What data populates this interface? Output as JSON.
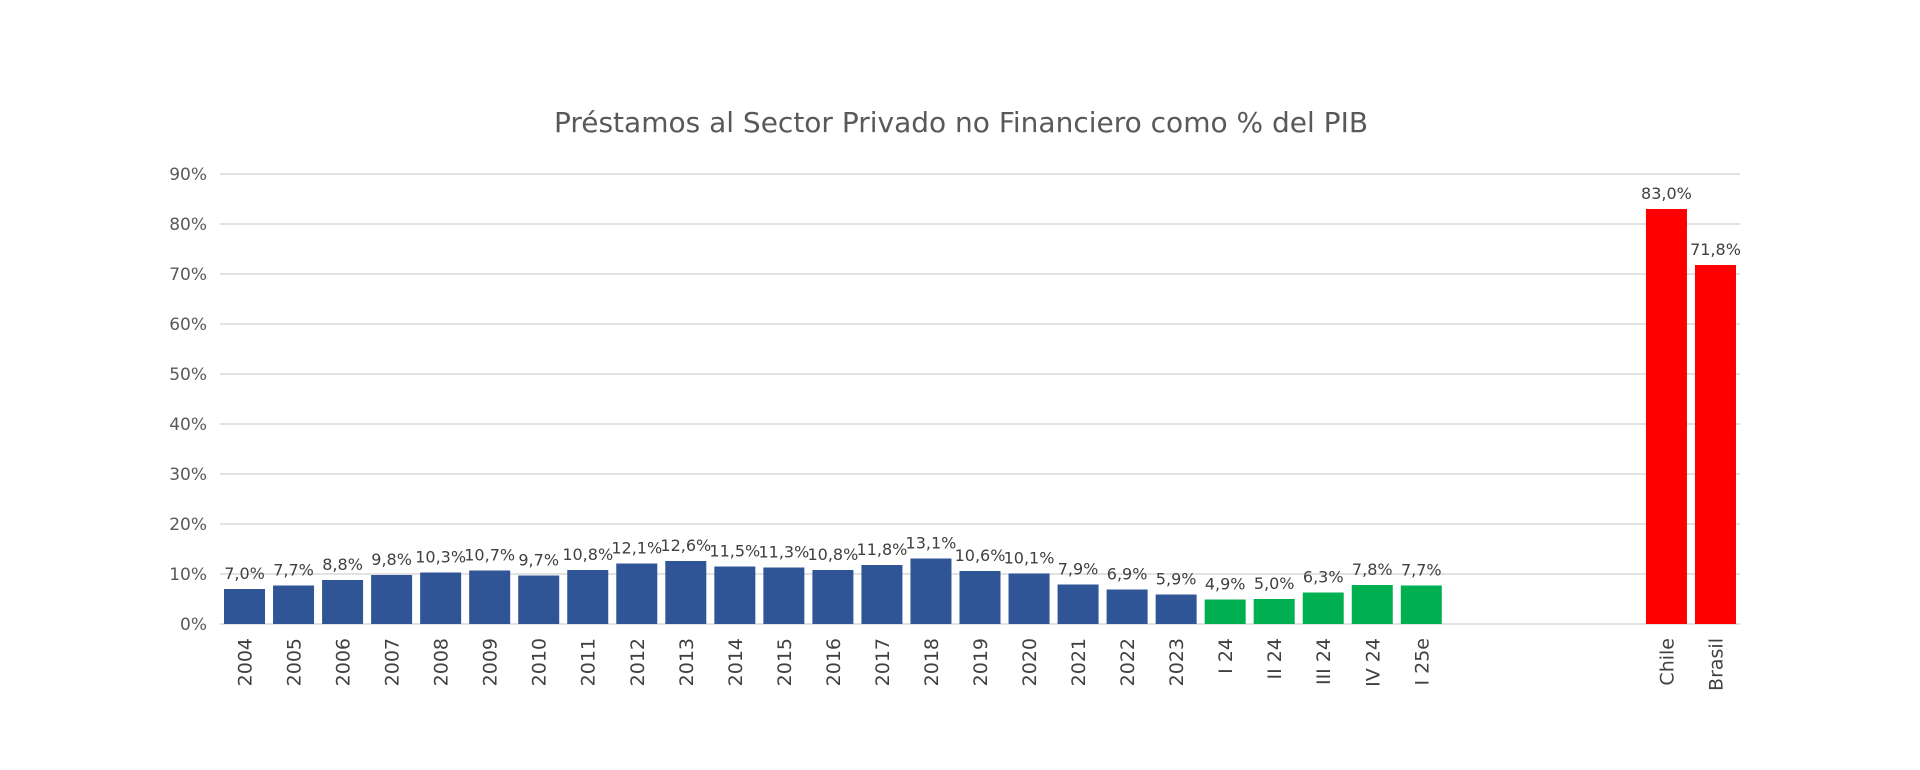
{
  "chart_data": {
    "type": "bar",
    "title": "Préstamos al Sector Privado no Financiero como % del PIB",
    "xlabel": "",
    "ylabel": "",
    "ylim": [
      0,
      90
    ],
    "y_ticks": [
      "0%",
      "10%",
      "20%",
      "30%",
      "40%",
      "50%",
      "60%",
      "70%",
      "80%",
      "90%"
    ],
    "grid": true,
    "legend": "none",
    "categories": [
      "2004",
      "2005",
      "2006",
      "2007",
      "2008",
      "2009",
      "2010",
      "2011",
      "2012",
      "2013",
      "2014",
      "2015",
      "2016",
      "2017",
      "2018",
      "2019",
      "2020",
      "2021",
      "2022",
      "2023",
      "I 24",
      "II 24",
      "III 24",
      "IV 24",
      "I 25e",
      "",
      "",
      "",
      "",
      "Chile",
      "Brasil"
    ],
    "values": [
      7.0,
      7.7,
      8.8,
      9.8,
      10.3,
      10.7,
      9.7,
      10.8,
      12.1,
      12.6,
      11.5,
      11.3,
      10.8,
      11.8,
      13.1,
      10.6,
      10.1,
      7.9,
      6.9,
      5.9,
      4.9,
      5.0,
      6.3,
      7.8,
      7.7,
      null,
      null,
      null,
      null,
      83.0,
      71.8
    ],
    "data_labels": [
      "7,0%",
      "7,7%",
      "8,8%",
      "9,8%",
      "10,3%",
      "10,7%",
      "9,7%",
      "10,8%",
      "12,1%",
      "12,6%",
      "11,5%",
      "11,3%",
      "10,8%",
      "11,8%",
      "13,1%",
      "10,6%",
      "10,1%",
      "7,9%",
      "6,9%",
      "5,9%",
      "4,9%",
      "5,0%",
      "6,3%",
      "7,8%",
      "7,7%",
      "",
      "",
      "",
      "",
      "83,0%",
      "71,8%"
    ],
    "bar_colors": [
      "#2f5597",
      "#2f5597",
      "#2f5597",
      "#2f5597",
      "#2f5597",
      "#2f5597",
      "#2f5597",
      "#2f5597",
      "#2f5597",
      "#2f5597",
      "#2f5597",
      "#2f5597",
      "#2f5597",
      "#2f5597",
      "#2f5597",
      "#2f5597",
      "#2f5597",
      "#2f5597",
      "#2f5597",
      "#2f5597",
      "#00b050",
      "#00b050",
      "#00b050",
      "#00b050",
      "#00b050",
      "",
      "",
      "",
      "",
      "#ff0000",
      "#ff0000"
    ]
  }
}
